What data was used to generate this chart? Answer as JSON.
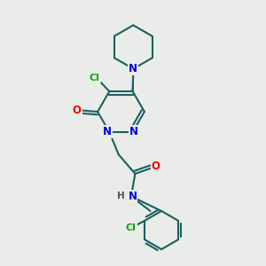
{
  "bg_color": "#eaece9",
  "atom_colors": {
    "N": "#0000ee",
    "O": "#ee0000",
    "Cl": "#00aa00",
    "C": "#1a6060",
    "H": "#505050"
  },
  "bond_color": "#1a6060",
  "font_size_atom": 8.0
}
